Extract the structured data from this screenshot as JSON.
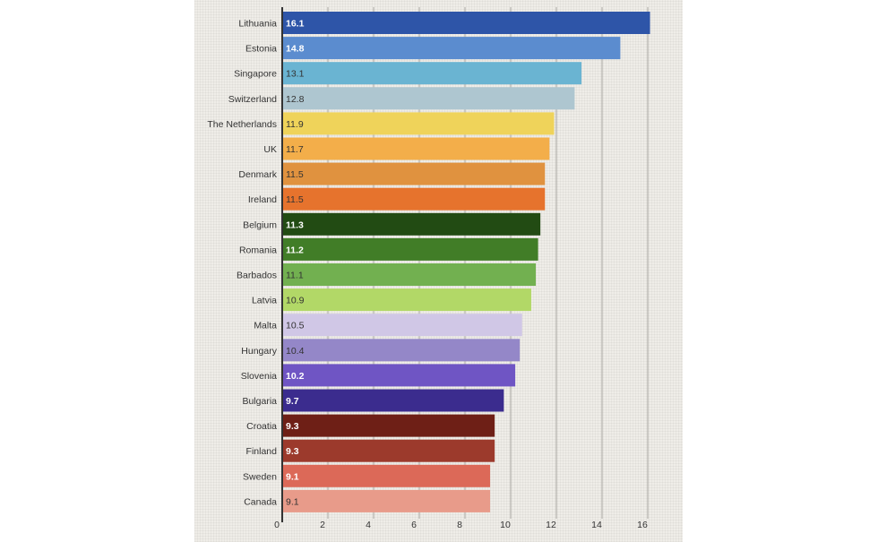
{
  "chart_data": {
    "type": "bar",
    "orientation": "horizontal",
    "categories": [
      "Lithuania",
      "Estonia",
      "Singapore",
      "Switzerland",
      "The Netherlands",
      "UK",
      "Denmark",
      "Ireland",
      "Belgium",
      "Romania",
      "Barbados",
      "Latvia",
      "Malta",
      "Hungary",
      "Slovenia",
      "Bulgaria",
      "Croatia",
      "Finland",
      "Sweden",
      "Canada"
    ],
    "values": [
      16.1,
      14.8,
      13.1,
      12.8,
      11.9,
      11.7,
      11.5,
      11.5,
      11.3,
      11.2,
      11.1,
      10.9,
      10.5,
      10.4,
      10.2,
      9.7,
      9.3,
      9.3,
      9.1,
      9.1
    ],
    "value_labels": [
      "16.1",
      "14.8",
      "13.1",
      "12.8",
      "11.9",
      "11.7",
      "11.5",
      "11.5",
      "11.3",
      "11.2",
      "11.1",
      "10.9",
      "10.5",
      "10.4",
      "10.2",
      "9.7",
      "9.3",
      "9.3",
      "9.1",
      "9.1"
    ],
    "colors": [
      "#2e55a8",
      "#5b8ccf",
      "#6ab4d2",
      "#aec6d0",
      "#efd35a",
      "#f3ae4a",
      "#e0923f",
      "#e6732d",
      "#224b13",
      "#417d27",
      "#72b050",
      "#b2d867",
      "#d0c7e6",
      "#9487c8",
      "#6f55c4",
      "#3b2c8e",
      "#6e1f16",
      "#9c3a2c",
      "#dc6958",
      "#e89b8a"
    ],
    "label_colors": [
      "#ffffff",
      "#ffffff",
      "#333333",
      "#333333",
      "#333333",
      "#333333",
      "#333333",
      "#333333",
      "#ffffff",
      "#ffffff",
      "#333333",
      "#333333",
      "#333333",
      "#333333",
      "#ffffff",
      "#ffffff",
      "#ffffff",
      "#ffffff",
      "#ffffff",
      "#333333"
    ],
    "label_bold": [
      true,
      true,
      false,
      false,
      false,
      false,
      false,
      false,
      true,
      true,
      false,
      false,
      false,
      false,
      true,
      true,
      true,
      true,
      true,
      false
    ],
    "xticks": [
      0,
      2,
      4,
      6,
      8,
      10,
      12,
      14,
      16
    ],
    "xlim": [
      0,
      16.5
    ],
    "title": "",
    "xlabel": "",
    "ylabel": "",
    "grid": "vertical",
    "legend": "none"
  }
}
